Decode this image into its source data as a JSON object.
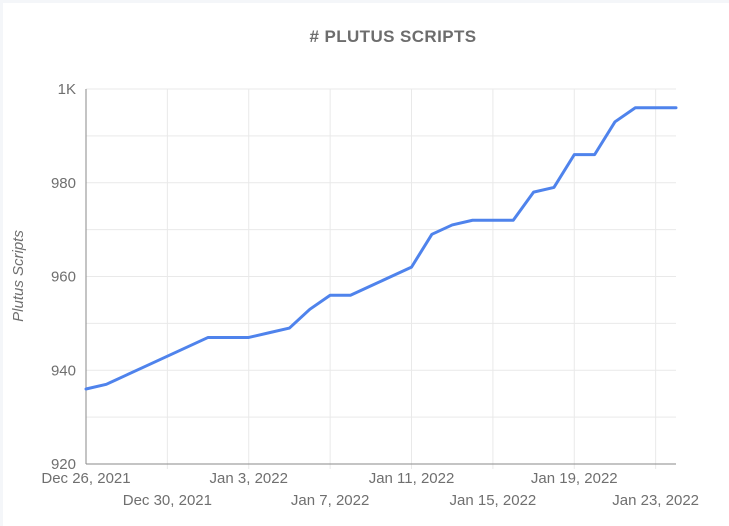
{
  "chart_data": {
    "type": "line",
    "title": "# PLUTUS SCRIPTS",
    "ylabel": "Plutus Scripts",
    "xlabel": "",
    "legend": "none",
    "grid": true,
    "ylim": [
      920,
      1000
    ],
    "y_gridline_step": 10,
    "x": [
      "Dec 26, 2021",
      "Dec 27, 2021",
      "Dec 28, 2021",
      "Dec 29, 2021",
      "Dec 30, 2021",
      "Dec 31, 2021",
      "Jan 1, 2022",
      "Jan 2, 2022",
      "Jan 3, 2022",
      "Jan 4, 2022",
      "Jan 5, 2022",
      "Jan 6, 2022",
      "Jan 7, 2022",
      "Jan 8, 2022",
      "Jan 9, 2022",
      "Jan 10, 2022",
      "Jan 11, 2022",
      "Jan 12, 2022",
      "Jan 13, 2022",
      "Jan 14, 2022",
      "Jan 15, 2022",
      "Jan 16, 2022",
      "Jan 17, 2022",
      "Jan 18, 2022",
      "Jan 19, 2022",
      "Jan 20, 2022",
      "Jan 21, 2022",
      "Jan 22, 2022",
      "Jan 23, 2022",
      "Jan 24, 2022"
    ],
    "values": [
      936,
      937,
      939,
      941,
      943,
      945,
      947,
      947,
      947,
      948,
      949,
      953,
      956,
      956,
      958,
      960,
      962,
      969,
      971,
      972,
      972,
      972,
      978,
      979,
      986,
      986,
      993,
      996,
      996,
      996
    ],
    "y_ticks": [
      {
        "value": 920,
        "label": "920"
      },
      {
        "value": 940,
        "label": "940"
      },
      {
        "value": 960,
        "label": "960"
      },
      {
        "value": 980,
        "label": "980"
      },
      {
        "value": 1000,
        "label": "1K"
      }
    ],
    "x_ticks": [
      {
        "index": 0,
        "label": "Dec 26, 2021",
        "row": 1
      },
      {
        "index": 4,
        "label": "Dec 30, 2021",
        "row": 2
      },
      {
        "index": 8,
        "label": "Jan 3, 2022",
        "row": 1
      },
      {
        "index": 12,
        "label": "Jan 7, 2022",
        "row": 2
      },
      {
        "index": 16,
        "label": "Jan 11, 2022",
        "row": 1
      },
      {
        "index": 20,
        "label": "Jan 15, 2022",
        "row": 2
      },
      {
        "index": 24,
        "label": "Jan 19, 2022",
        "row": 1
      },
      {
        "index": 28,
        "label": "Jan 23, 2022",
        "row": 2
      }
    ],
    "colors": {
      "line": "#4f83ec",
      "gridline": "#e9e9e9",
      "axis": "#8a8a8a",
      "tick_text": "#6f6f6f",
      "title_text": "#6d6d6d"
    }
  }
}
